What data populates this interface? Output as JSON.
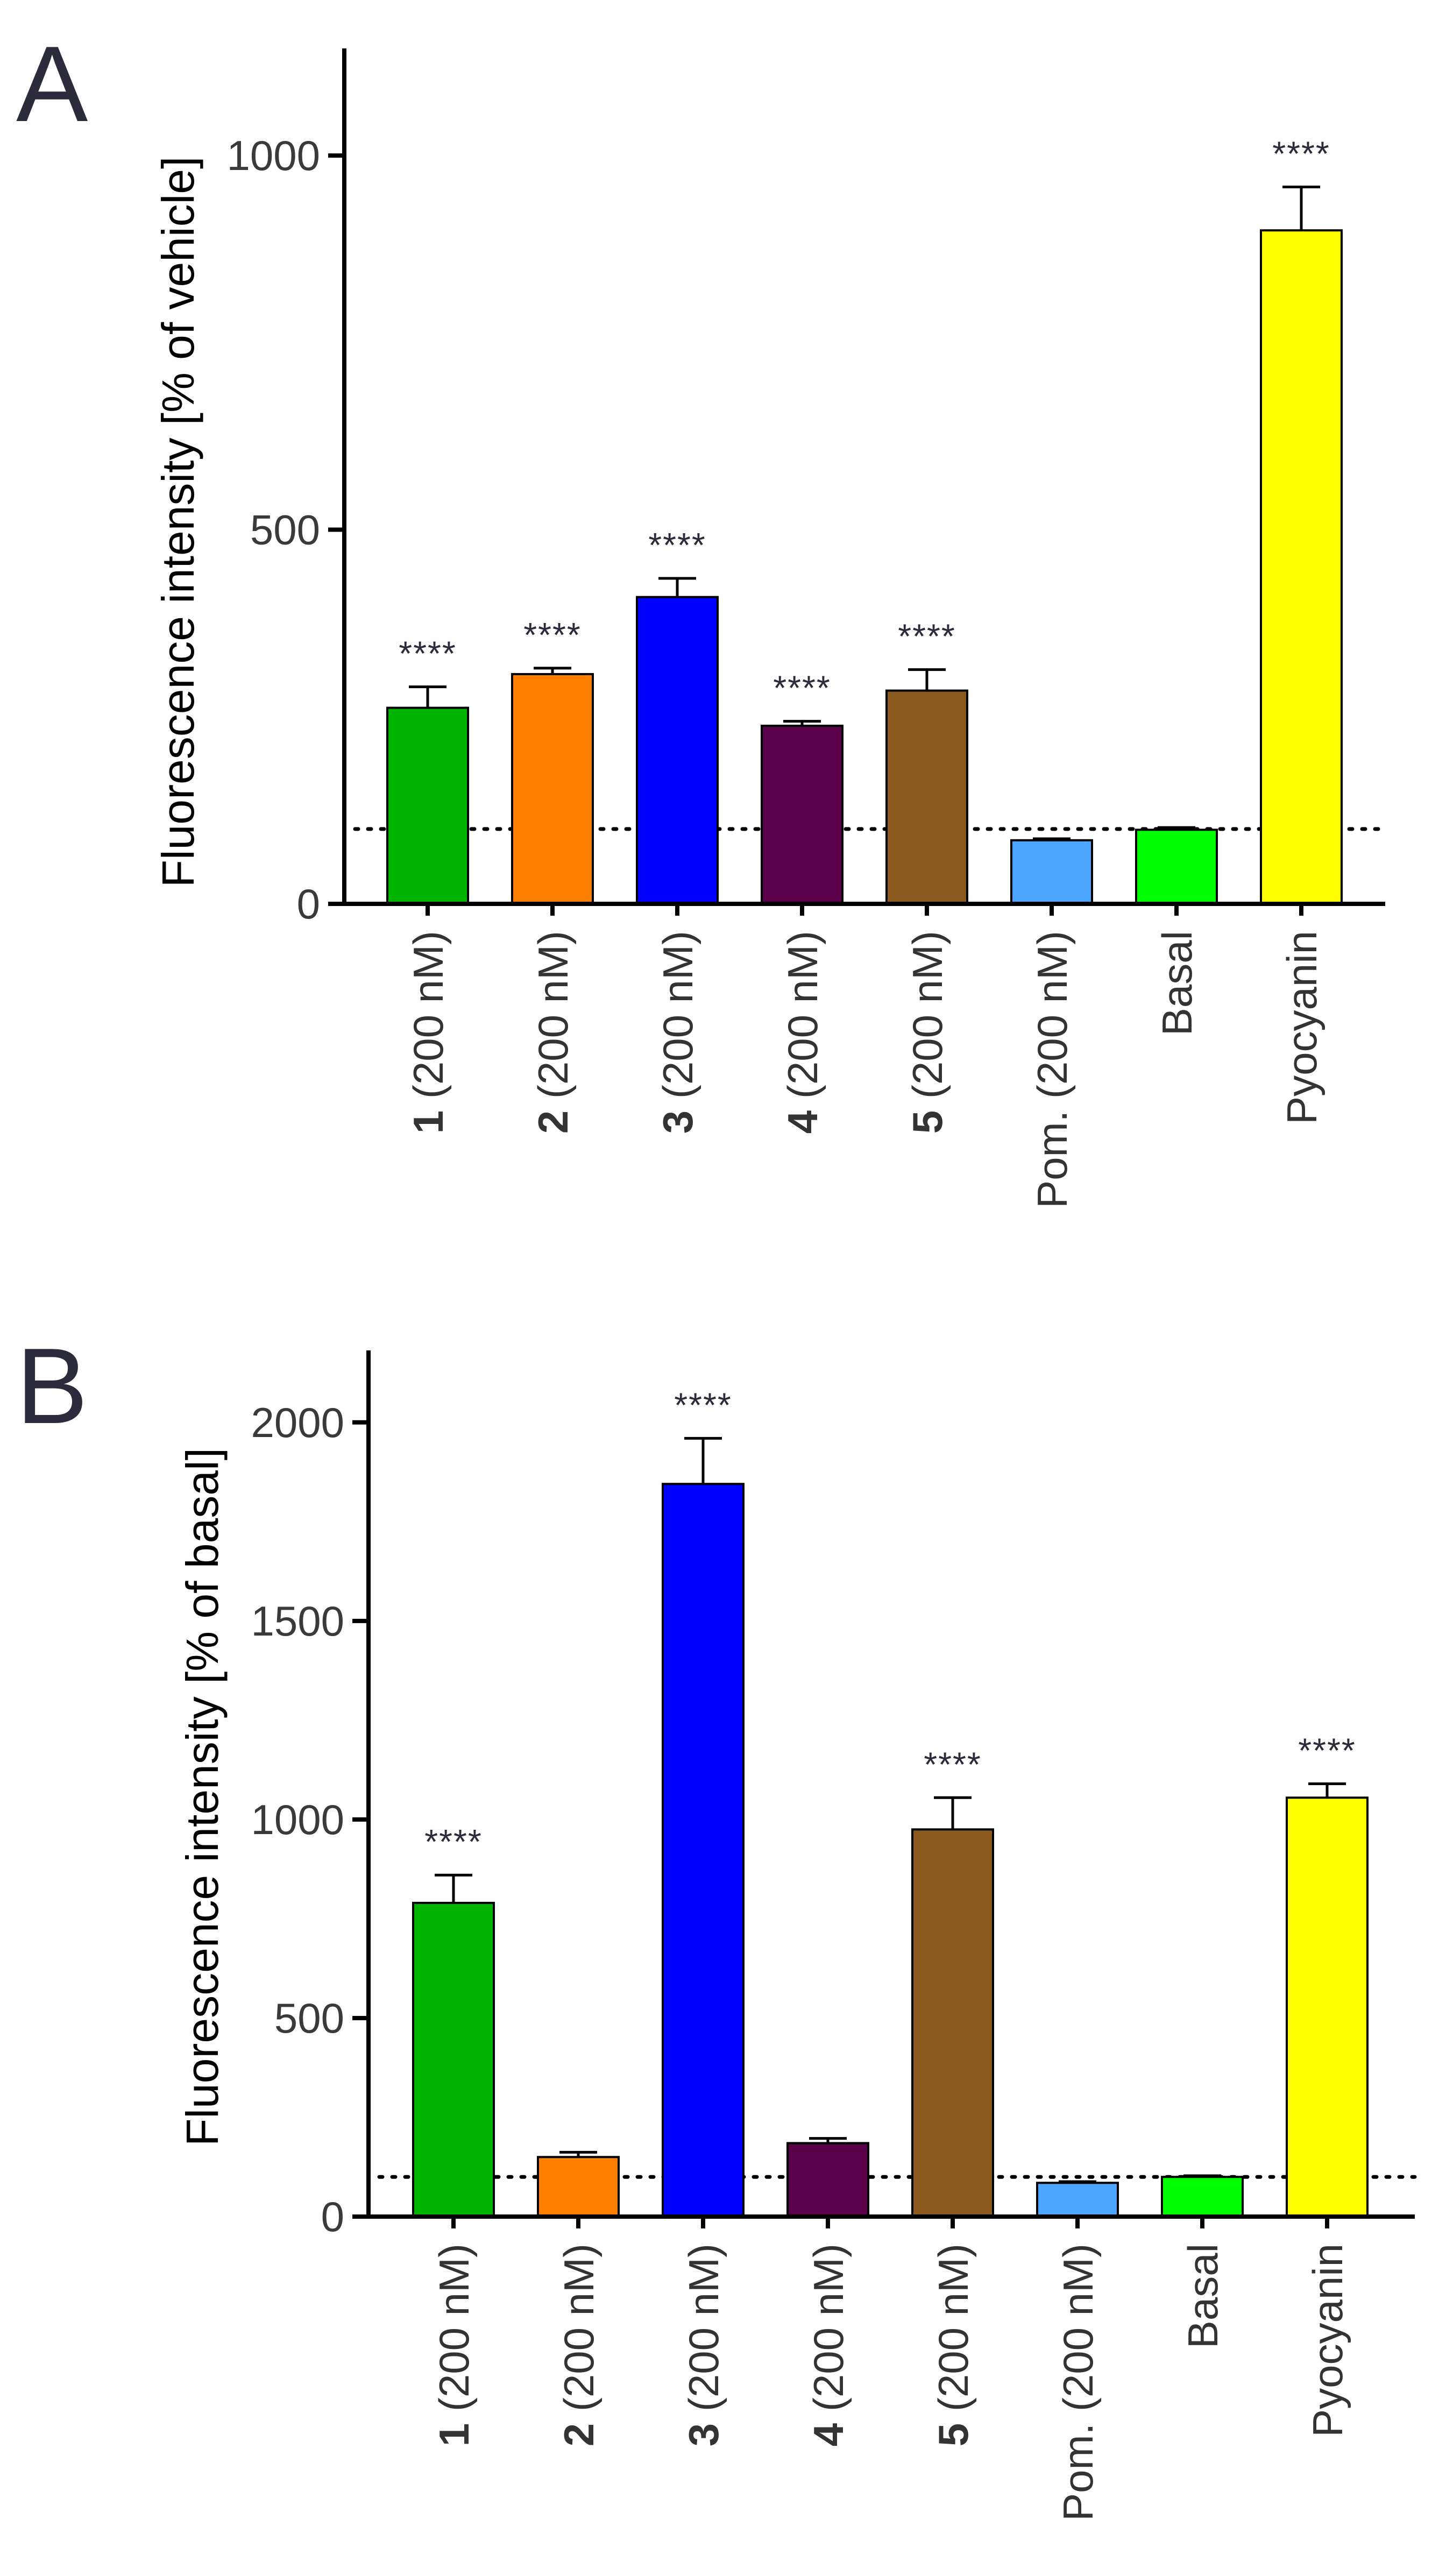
{
  "chart_data": [
    {
      "type": "bar",
      "panel_label": "A",
      "ylabel": "Fluorescence intensity [% of vehicle]",
      "ylim": [
        0,
        1100
      ],
      "yticks": [
        0,
        500,
        1000
      ],
      "reference_value": 100,
      "categories": [
        {
          "num": "1",
          "label": " (200 nM)"
        },
        {
          "num": "2",
          "label": " (200 nM)"
        },
        {
          "num": "3",
          "label": " (200 nM)"
        },
        {
          "num": "4",
          "label": " (200 nM)"
        },
        {
          "num": "5",
          "label": " (200 nM)"
        },
        {
          "num": "",
          "label": "Pom. (200 nM)"
        },
        {
          "num": "",
          "label": "Basal"
        },
        {
          "num": "",
          "label": "Pyocyanin"
        }
      ],
      "values": [
        262,
        307,
        410,
        238,
        285,
        85,
        99,
        900
      ],
      "errors": [
        28,
        8,
        25,
        6,
        28,
        2,
        3,
        58
      ],
      "colors": [
        "#00b400",
        "#ff7f00",
        "#0000ff",
        "#5a004a",
        "#8b5a1e",
        "#4da6ff",
        "#00ff00",
        "#ffff00"
      ],
      "significance": [
        "****",
        "****",
        "****",
        "****",
        "****",
        "",
        "",
        "****"
      ]
    },
    {
      "type": "bar",
      "panel_label": "B",
      "ylabel": "Fluorescence intensity [% of basal]",
      "ylim": [
        0,
        2100
      ],
      "yticks": [
        0,
        500,
        1000,
        1500,
        2000
      ],
      "reference_value": 100,
      "categories": [
        {
          "num": "1",
          "label": " (200 nM)"
        },
        {
          "num": "2",
          "label": " (200 nM)"
        },
        {
          "num": "3",
          "label": " (200 nM)"
        },
        {
          "num": "4",
          "label": " (200 nM)"
        },
        {
          "num": "5",
          "label": " (200 nM)"
        },
        {
          "num": "",
          "label": "Pom. (200 nM)"
        },
        {
          "num": "",
          "label": "Basal"
        },
        {
          "num": "",
          "label": "Pyocyanin"
        }
      ],
      "values": [
        790,
        150,
        1845,
        185,
        975,
        85,
        100,
        1055
      ],
      "errors": [
        70,
        12,
        115,
        12,
        80,
        3,
        3,
        35
      ],
      "colors": [
        "#00b400",
        "#ff7f00",
        "#0000ff",
        "#5a004a",
        "#8b5a1e",
        "#4da6ff",
        "#00ff00",
        "#ffff00"
      ],
      "significance": [
        "****",
        "",
        "****",
        "",
        "****",
        "",
        "",
        "****"
      ]
    }
  ]
}
